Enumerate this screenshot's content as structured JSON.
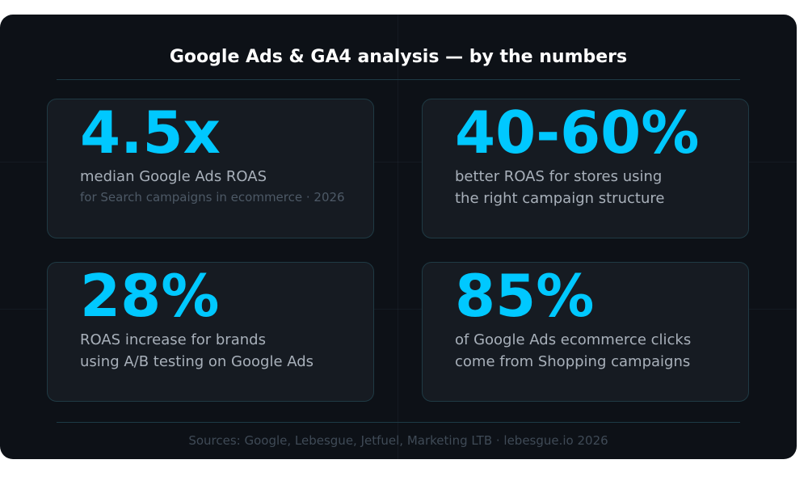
{
  "title": "Google Ads & GA4 analysis — by the numbers",
  "stats": [
    {
      "value": "4.5x",
      "lines": [
        "median Google Ads ROAS"
      ],
      "note": "for Search campaigns in ecommerce · 2026"
    },
    {
      "value": "40-60%",
      "lines": [
        "better ROAS for stores using",
        "the right campaign structure"
      ]
    },
    {
      "value": "28%",
      "lines": [
        "ROAS increase for brands",
        "using A/B testing on Google Ads"
      ]
    },
    {
      "value": "85%",
      "lines": [
        "of Google Ads ecommerce clicks",
        "come from Shopping campaigns"
      ]
    }
  ],
  "footer": "Sources: Google, Lebesgue, Jetfuel, Marketing LTB · lebesgue.io 2026",
  "colors": {
    "accent": "#00c8ff",
    "background": "#0d1117",
    "tile": "#161b22"
  }
}
